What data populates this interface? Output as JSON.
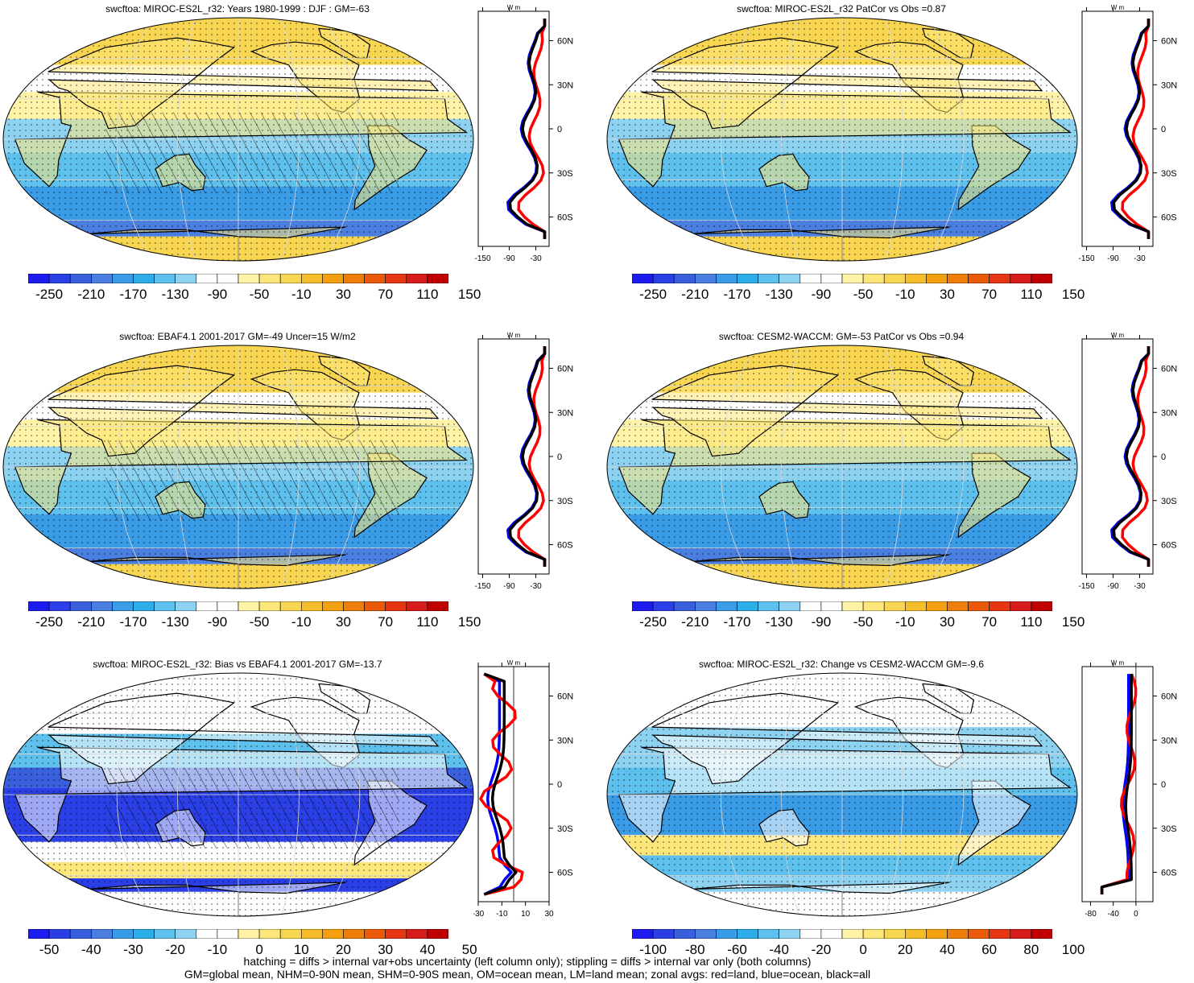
{
  "panels": [
    {
      "title": "swcftoa: MIROC-ES2L_r32: Years 1980-1999 : DJF : GM=-63",
      "kind": "abs",
      "colorbar_labels": [
        "-250",
        "-210",
        "-170",
        "-130",
        "-90",
        "-50",
        "-10",
        "30",
        "70",
        "110",
        "150"
      ],
      "profile": {
        "units": "W m",
        "xticks": [
          "-150",
          "-90",
          "-30"
        ],
        "yticks": [
          "60N",
          "30N",
          "0",
          "30S",
          "60S"
        ]
      },
      "hatching": true
    },
    {
      "title": "swcftoa: MIROC-ES2L_r32 PatCor vs Obs =0.87",
      "kind": "abs",
      "colorbar_labels": [
        "-250",
        "-210",
        "-170",
        "-130",
        "-90",
        "-50",
        "-10",
        "30",
        "70",
        "110",
        "150"
      ],
      "profile": {
        "units": "W m",
        "xticks": [
          "-150",
          "-90",
          "-30"
        ],
        "yticks": [
          "60N",
          "30N",
          "0",
          "30S",
          "60S"
        ]
      },
      "hatching": false
    },
    {
      "title": "swcftoa: EBAF4.1 2001-2017 GM=-49 Uncer=15 W/m2",
      "kind": "abs",
      "colorbar_labels": [
        "-250",
        "-210",
        "-170",
        "-130",
        "-90",
        "-50",
        "-10",
        "30",
        "70",
        "110",
        "150"
      ],
      "profile": {
        "units": "W m",
        "xticks": [
          "-150",
          "-90",
          "-30"
        ],
        "yticks": [
          "60N",
          "30N",
          "0",
          "30S",
          "60S"
        ]
      },
      "hatching": true
    },
    {
      "title": "swcftoa: CESM2-WACCM: GM=-53 PatCor vs Obs =0.94",
      "kind": "abs",
      "colorbar_labels": [
        "-250",
        "-210",
        "-170",
        "-130",
        "-90",
        "-50",
        "-10",
        "30",
        "70",
        "110",
        "150"
      ],
      "profile": {
        "units": "W m",
        "xticks": [
          "-150",
          "-90",
          "-30"
        ],
        "yticks": [
          "60N",
          "30N",
          "0",
          "30S",
          "60S"
        ]
      },
      "hatching": false
    },
    {
      "title": "swcftoa: MIROC-ES2L_r32: Bias vs EBAF4.1 2001-2017 GM=-13.7",
      "kind": "bias",
      "colorbar_labels": [
        "-50",
        "-40",
        "-30",
        "-20",
        "-10",
        "0",
        "10",
        "20",
        "30",
        "40",
        "50"
      ],
      "profile": {
        "units": "W m",
        "xticks": [
          "-30",
          "-10",
          "10",
          "30"
        ],
        "yticks": [
          "60N",
          "30N",
          "0",
          "30S",
          "60S"
        ]
      },
      "hatching": true
    },
    {
      "title": "swcftoa: MIROC-ES2L_r32: Change vs CESM2-WACCM GM=-9.6",
      "kind": "change",
      "colorbar_labels": [
        "-100",
        "-80",
        "-60",
        "-40",
        "-20",
        "0",
        "20",
        "40",
        "60",
        "80",
        "100"
      ],
      "profile": {
        "units": "W m",
        "xticks": [
          "-80",
          "-40",
          "0"
        ],
        "yticks": [
          "60N",
          "30N",
          "0",
          "30S",
          "60S"
        ]
      },
      "hatching": false
    }
  ],
  "colors": {
    "palette": [
      "#1c1cf0",
      "#2b3fe6",
      "#3a5fdd",
      "#4a7ee0",
      "#3a9be6",
      "#2eaee8",
      "#5ec0ec",
      "#8ed2f2",
      "#ffffff",
      "#ffffff",
      "#fff3a8",
      "#fde77a",
      "#f8d651",
      "#f5bd2c",
      "#f2a012",
      "#ef7d0a",
      "#ea5a08",
      "#e53512",
      "#d81b1b",
      "#c00000"
    ],
    "land_line": "#000000",
    "profile_land": "#ff0000",
    "profile_ocean": "#0000ff",
    "profile_all": "#000000"
  },
  "footer": {
    "line1": "hatching = diffs > internal var+obs uncertainty (left column only); stippling = diffs > internal var only (both columns)",
    "line2": "GM=global mean, NHM=0-90N mean, SHM=0-90S mean, OM=ocean mean, LM=land mean; zonal avgs: red=land, blue=ocean, black=all"
  }
}
